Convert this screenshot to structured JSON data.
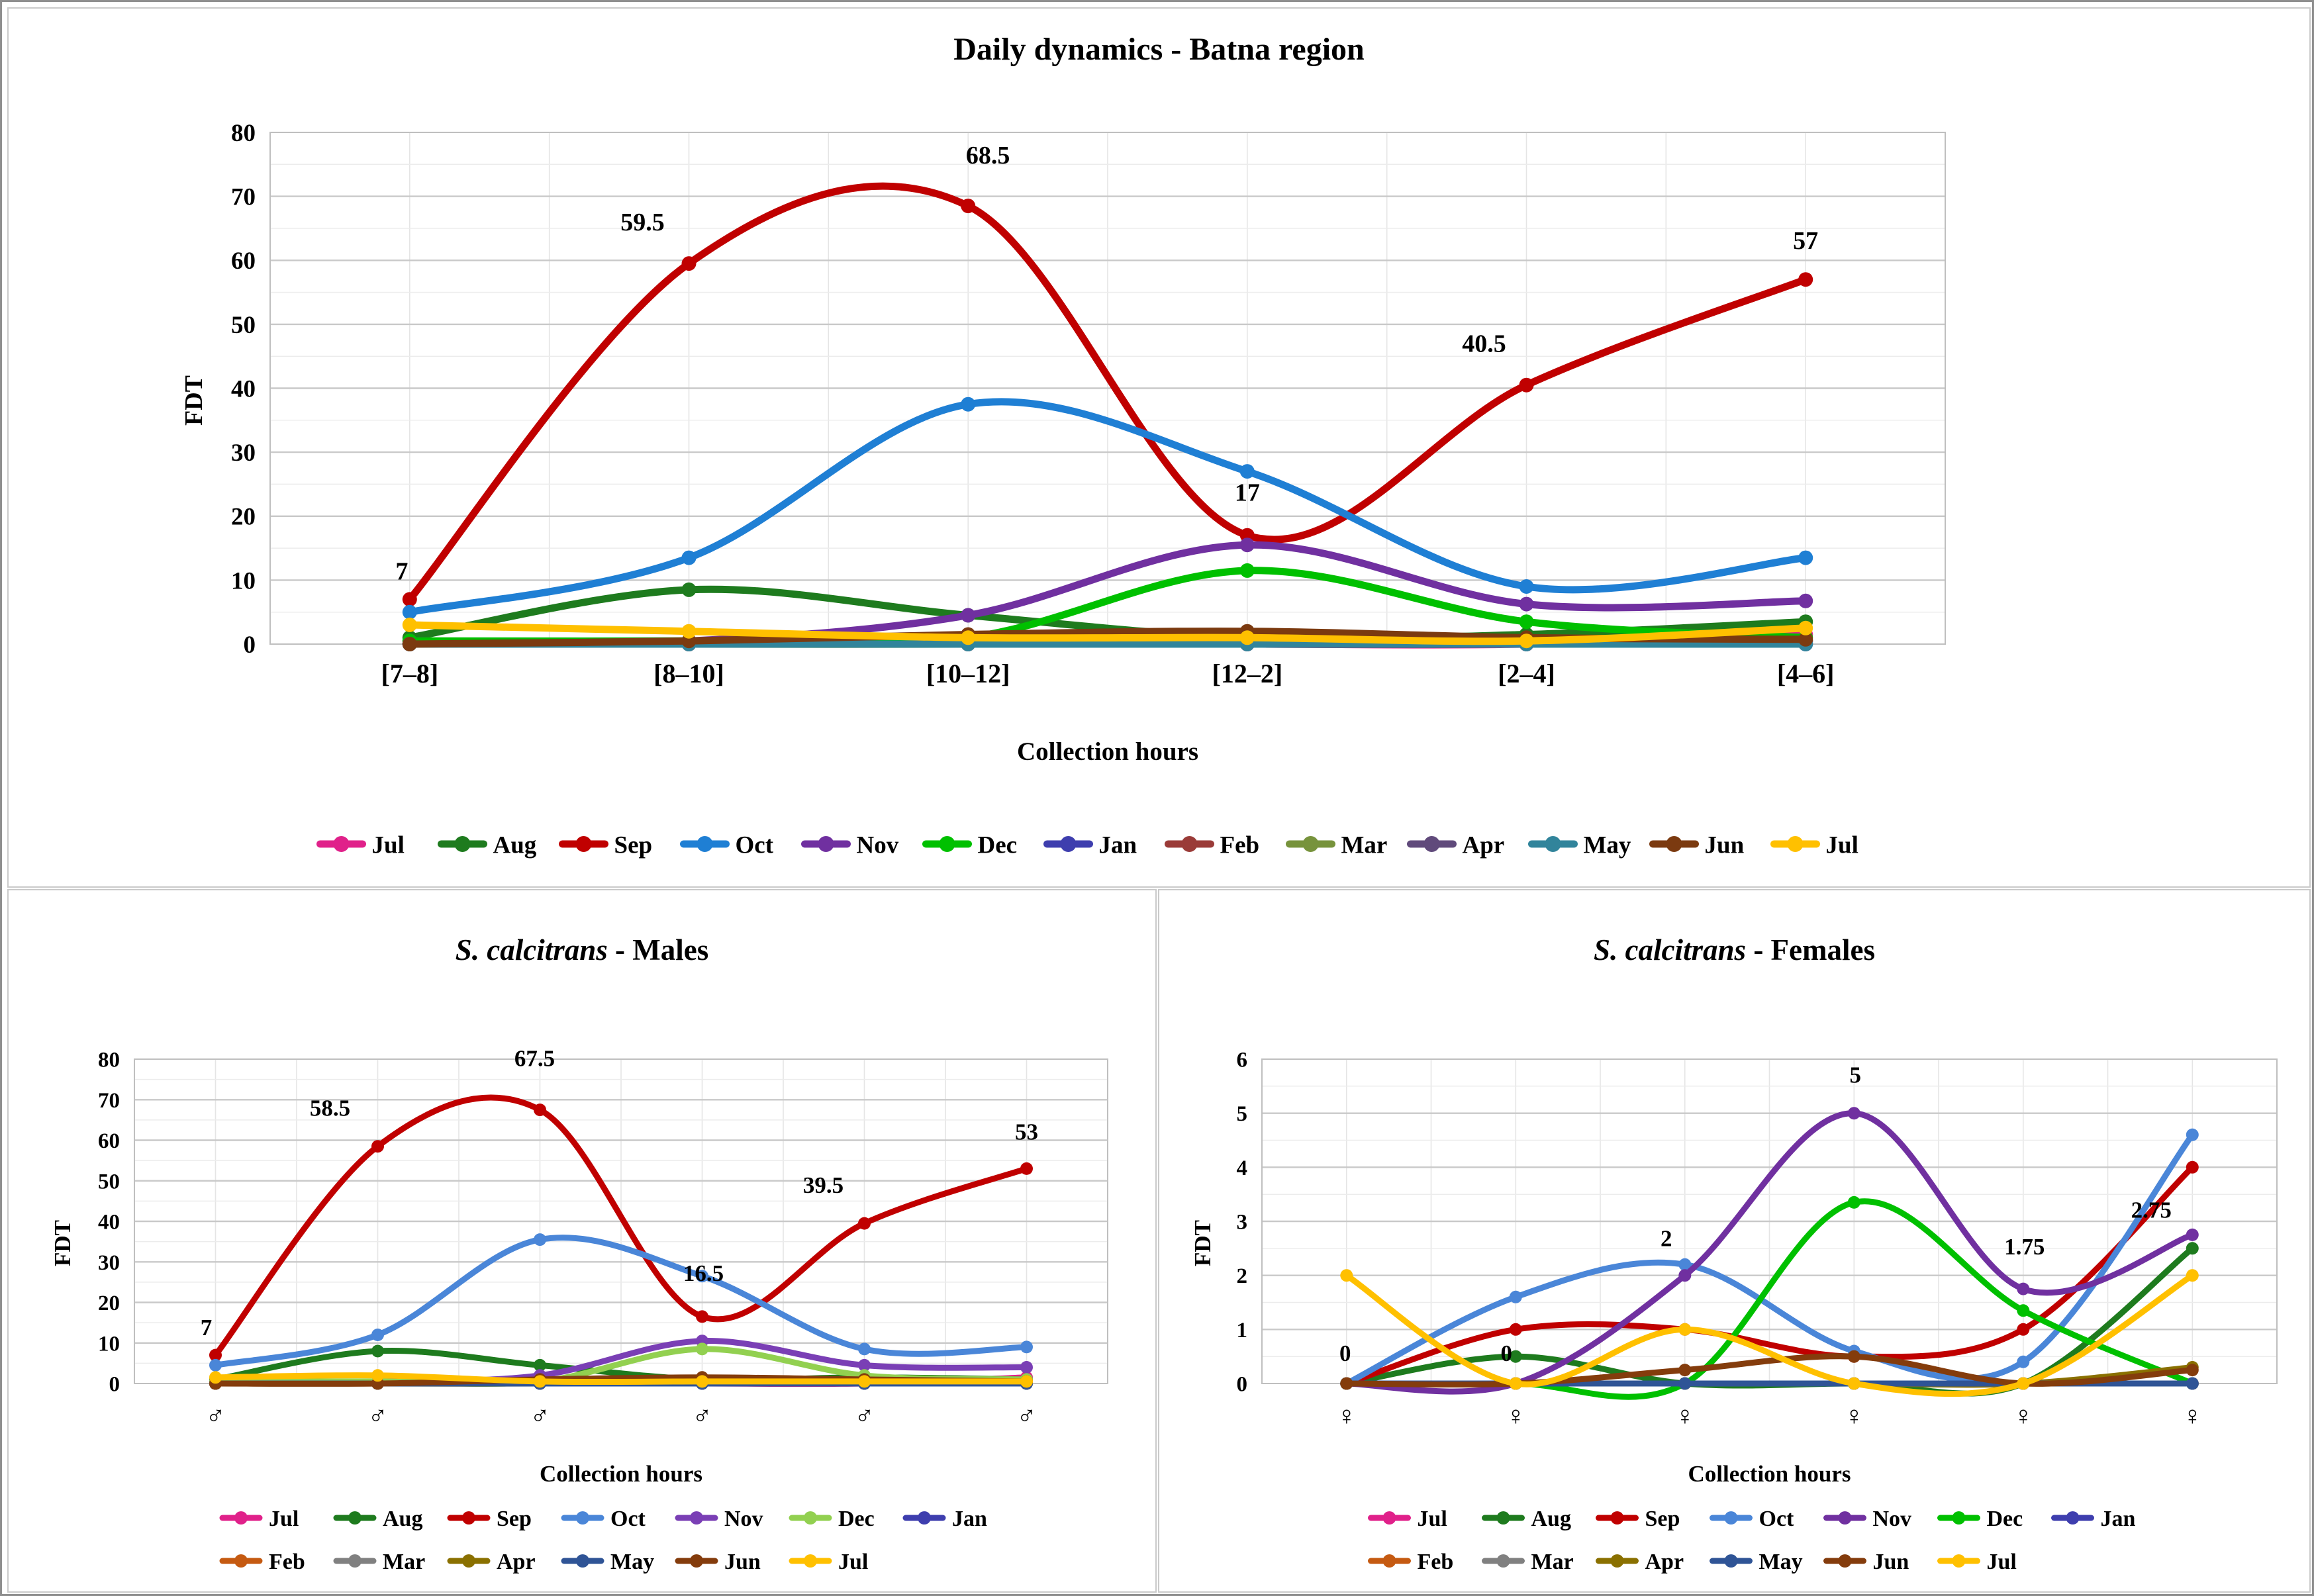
{
  "figure": {
    "background": "#FFFFFF",
    "outer_border_color": "#8F8F8F",
    "panel_border_color": "#CACACA",
    "text_color": "#000000",
    "gridline_major_color": "#C9C9C9",
    "gridline_minor_color": "#ECECEC",
    "gridline_vertical_color": "#E5E5E5"
  },
  "chart_data": [
    {
      "id": "daily",
      "type": "line",
      "title": "Daily dynamics - Batna region",
      "title_italic": "",
      "title_rest": "Daily dynamics - Batna region",
      "xlabel": "Collection hours",
      "ylabel": "FDT",
      "ylim": [
        0,
        80
      ],
      "ytick_step": 10,
      "yticks": [
        0,
        10,
        20,
        30,
        40,
        50,
        60,
        70,
        80
      ],
      "grid": true,
      "legend_position": "bottom",
      "categories": [
        "[7–8]",
        "[8–10]",
        "[10–12]",
        "[12–2]",
        "[2–4]",
        "[4–6]"
      ],
      "series": [
        {
          "name": "Jul",
          "color": "#E0218A",
          "values": [
            0,
            0,
            0,
            0,
            0,
            1.5
          ]
        },
        {
          "name": "Aug",
          "color": "#1E7B1E",
          "values": [
            1,
            8.5,
            4.5,
            1,
            1.5,
            3.5
          ]
        },
        {
          "name": "Sep",
          "color": "#C00000",
          "values": [
            7,
            59.5,
            68.5,
            17,
            40.5,
            57
          ]
        },
        {
          "name": "Oct",
          "color": "#1F7FD4",
          "values": [
            5,
            13.5,
            37.5,
            27,
            9,
            13.5
          ]
        },
        {
          "name": "Nov",
          "color": "#7030A0",
          "values": [
            0.5,
            0.5,
            4.5,
            15.5,
            6.25,
            6.75
          ]
        },
        {
          "name": "Dec",
          "color": "#00C000",
          "values": [
            0.5,
            0.5,
            1,
            11.5,
            3.5,
            1
          ]
        },
        {
          "name": "Jan",
          "color": "#3E3EAE",
          "values": [
            0,
            0,
            0,
            0,
            0,
            0
          ]
        },
        {
          "name": "Feb",
          "color": "#9A3B38",
          "values": [
            0,
            0,
            0,
            0,
            0,
            0.5
          ]
        },
        {
          "name": "Mar",
          "color": "#77933C",
          "values": [
            0,
            0,
            0,
            0.5,
            0.5,
            0.5
          ]
        },
        {
          "name": "Apr",
          "color": "#604A7B",
          "values": [
            0,
            0,
            0,
            0,
            0,
            0.5
          ]
        },
        {
          "name": "May",
          "color": "#31849B",
          "values": [
            0,
            0,
            0,
            0,
            0,
            0
          ]
        },
        {
          "name": "Jun",
          "color": "#7B3A10",
          "values": [
            0,
            0.5,
            1.5,
            2,
            1,
            0.75
          ]
        },
        {
          "name": "Jul",
          "color": "#FFC000",
          "values": [
            3,
            2,
            1,
            1,
            0.5,
            2.5
          ]
        }
      ],
      "point_labels": {
        "series_index": 2,
        "values": [
          "7",
          "59.5",
          "68.5",
          "17",
          "40.5",
          "57"
        ]
      },
      "legend_rows": [
        13
      ]
    },
    {
      "id": "males",
      "type": "line",
      "title": "S. calcitrans - Males",
      "title_italic": "S. calcitrans",
      "title_rest": " - Males",
      "xlabel": "Collection hours",
      "ylabel": "FDT",
      "ylim": [
        0,
        80
      ],
      "ytick_step": 10,
      "yticks": [
        0,
        10,
        20,
        30,
        40,
        50,
        60,
        70,
        80
      ],
      "grid": true,
      "legend_position": "bottom",
      "categories": [
        "♂",
        "♂",
        "♂",
        "♂",
        "♂",
        "♂"
      ],
      "series": [
        {
          "name": "Jul",
          "color": "#E0218A",
          "values": [
            0,
            0,
            0,
            0,
            0,
            1.5
          ]
        },
        {
          "name": "Aug",
          "color": "#1E7B1E",
          "values": [
            1,
            8,
            4.5,
            1,
            1.5,
            1
          ]
        },
        {
          "name": "Sep",
          "color": "#C00000",
          "values": [
            7,
            58.5,
            67.5,
            16.5,
            39.5,
            53
          ]
        },
        {
          "name": "Oct",
          "color": "#4A86D8",
          "values": [
            4.5,
            12,
            35.5,
            26.5,
            8.5,
            9
          ]
        },
        {
          "name": "Nov",
          "color": "#7A3FB5",
          "values": [
            0.5,
            0.5,
            2,
            10.5,
            4.5,
            4
          ]
        },
        {
          "name": "Dec",
          "color": "#92D050",
          "values": [
            0.5,
            0.5,
            0.5,
            8.5,
            2,
            1
          ]
        },
        {
          "name": "Jan",
          "color": "#3E3EAE",
          "values": [
            0,
            0,
            0,
            0,
            0,
            0
          ]
        },
        {
          "name": "Feb",
          "color": "#C55A11",
          "values": [
            0,
            0,
            0,
            0,
            0,
            0
          ]
        },
        {
          "name": "Mar",
          "color": "#808080",
          "values": [
            0,
            0,
            0,
            0,
            0,
            0
          ]
        },
        {
          "name": "Apr",
          "color": "#8A7000",
          "values": [
            0,
            0,
            0,
            0.5,
            0.5,
            0.5
          ]
        },
        {
          "name": "May",
          "color": "#2F5496",
          "values": [
            0,
            0,
            0,
            0,
            0,
            0
          ]
        },
        {
          "name": "Jun",
          "color": "#843C0C",
          "values": [
            0,
            0,
            1,
            1.5,
            1,
            0.5
          ]
        },
        {
          "name": "Jul",
          "color": "#FFC000",
          "values": [
            1.5,
            2,
            0.5,
            0.5,
            0.5,
            0.5
          ]
        }
      ],
      "point_labels": {
        "series_index": 2,
        "values": [
          "7",
          "58.5",
          "67.5",
          "16.5",
          "39.5",
          "53"
        ]
      },
      "legend_rows": [
        7,
        6
      ]
    },
    {
      "id": "females",
      "type": "line",
      "title": "S. calcitrans - Females",
      "title_italic": "S. calcitrans",
      "title_rest": " - Females",
      "xlabel": "Collection hours",
      "ylabel": "FDT",
      "ylim": [
        0,
        6
      ],
      "ytick_step": 1,
      "yticks": [
        0,
        1,
        2,
        3,
        4,
        5,
        6
      ],
      "grid": true,
      "legend_position": "bottom",
      "categories": [
        "♀",
        "♀",
        "♀",
        "♀",
        "♀",
        "♀"
      ],
      "series": [
        {
          "name": "Jul",
          "color": "#E0218A",
          "values": [
            0,
            0,
            0,
            0,
            0,
            0
          ]
        },
        {
          "name": "Aug",
          "color": "#1E7B1E",
          "values": [
            0,
            0.5,
            0,
            0,
            0,
            2.5
          ]
        },
        {
          "name": "Sep",
          "color": "#C00000",
          "values": [
            0,
            1,
            1,
            0.5,
            1,
            4
          ]
        },
        {
          "name": "Oct",
          "color": "#4A86D8",
          "values": [
            0,
            1.6,
            2.2,
            0.6,
            0.4,
            4.6
          ]
        },
        {
          "name": "Nov",
          "color": "#7030A0",
          "values": [
            0,
            0,
            2,
            5,
            1.75,
            2.75
          ]
        },
        {
          "name": "Dec",
          "color": "#00C000",
          "values": [
            0,
            0,
            0,
            3.35,
            1.35,
            0
          ]
        },
        {
          "name": "Jan",
          "color": "#3E3EAE",
          "values": [
            0,
            0,
            0,
            0,
            0,
            0
          ]
        },
        {
          "name": "Feb",
          "color": "#C55A11",
          "values": [
            0,
            0,
            0,
            0,
            0,
            0
          ]
        },
        {
          "name": "Mar",
          "color": "#808080",
          "values": [
            0,
            0,
            0,
            0,
            0,
            0
          ]
        },
        {
          "name": "Apr",
          "color": "#8A7000",
          "values": [
            0,
            0,
            0,
            0,
            0,
            0.3
          ]
        },
        {
          "name": "May",
          "color": "#2F5496",
          "values": [
            0,
            0,
            0,
            0,
            0,
            0
          ]
        },
        {
          "name": "Jun",
          "color": "#843C0C",
          "values": [
            0,
            0,
            0.25,
            0.5,
            0,
            0.25
          ]
        },
        {
          "name": "Jul",
          "color": "#FFC000",
          "values": [
            2,
            0,
            1,
            0,
            0,
            2
          ]
        }
      ],
      "point_labels": {
        "series_index": 4,
        "values": [
          "0",
          "0",
          "2",
          "5",
          "1.75",
          "2.75"
        ]
      },
      "legend_rows": [
        7,
        6
      ]
    }
  ]
}
